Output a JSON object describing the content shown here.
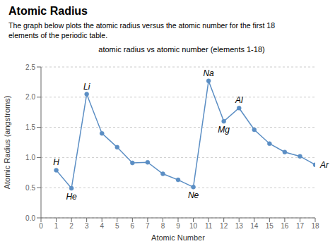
{
  "chart_data": {
    "type": "line",
    "title": "Atomic Radius",
    "subtitle": "The graph below plots the atomic radius versus the atomic number for the first 18\nelements of the periodic table.",
    "chart_title": "atomic radius vs atomic number (elements 1-18)",
    "x_label": "Atomic Number",
    "y_label": "Atomic Radius (angstroms)",
    "x": [
      1,
      2,
      3,
      4,
      5,
      6,
      7,
      8,
      9,
      10,
      11,
      12,
      13,
      14,
      15,
      16,
      17,
      18
    ],
    "values": [
      0.79,
      0.49,
      2.05,
      1.4,
      1.17,
      0.91,
      0.92,
      0.73,
      0.63,
      0.51,
      2.27,
      1.6,
      1.82,
      1.46,
      1.23,
      1.09,
      1.02,
      0.88
    ],
    "color": "#5b8ec4",
    "marker": "circle",
    "xlim": [
      0,
      18
    ],
    "ylim": [
      0,
      2.5
    ],
    "xticks": [
      0,
      1,
      2,
      3,
      4,
      5,
      6,
      7,
      8,
      9,
      10,
      11,
      12,
      13,
      14,
      15,
      16,
      17,
      18
    ],
    "yticks": [
      {
        "value": 0,
        "label": "0.0"
      },
      0.5,
      {
        "value": 1,
        "label": "1.0"
      },
      1.5,
      {
        "value": 2,
        "label": "2.0"
      },
      2.5
    ],
    "grid": true,
    "annotations": [
      {
        "text": "H",
        "x": 1,
        "y": 0.79
      },
      {
        "text": "He",
        "x": 2,
        "y": 0.49
      },
      {
        "text": "Li",
        "x": 3,
        "y": 2.05
      },
      {
        "text": "Ne",
        "x": 10,
        "y": 0.51
      },
      {
        "text": "Na",
        "x": 11,
        "y": 2.27
      },
      {
        "text": "Mg",
        "x": 12,
        "y": 1.6
      },
      {
        "text": "Al",
        "x": 13,
        "y": 1.82
      },
      {
        "text": "Ar",
        "x": 18,
        "y": 0.88
      }
    ]
  }
}
